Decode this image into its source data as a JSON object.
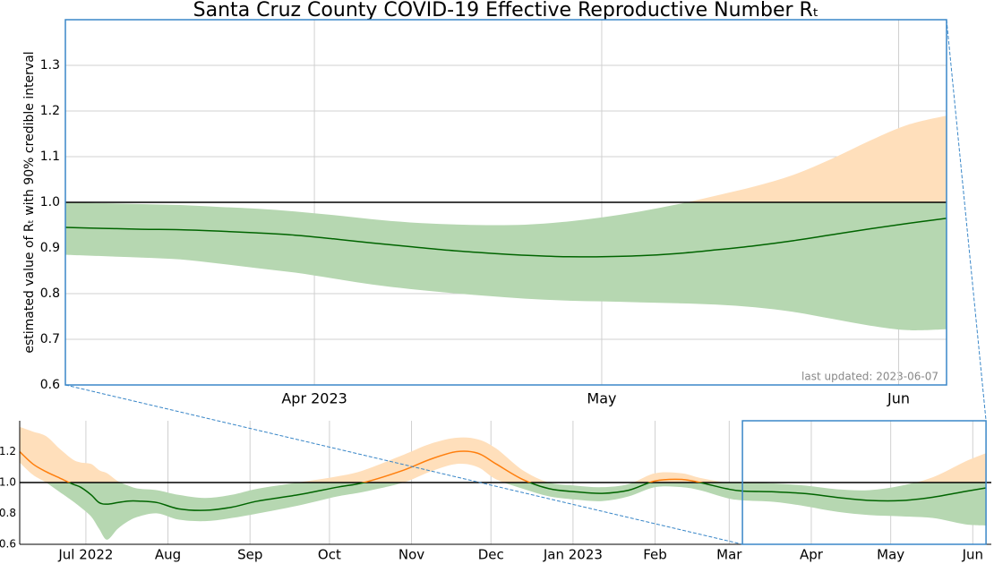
{
  "chart_data": [
    {
      "type": "line",
      "title": "Santa Cruz County COVID-19 Effective Reproductive Number Rₜ",
      "ylabel": "estimated value of Rₜ with 90% credible interval",
      "annotation": "last updated: 2023-06-07",
      "x": [
        278,
        282,
        286,
        290,
        294,
        298,
        302,
        306,
        310,
        314,
        318,
        322,
        326,
        330,
        334,
        338,
        342,
        346,
        350,
        354,
        358,
        362,
        366,
        370
      ],
      "values": [
        0.945,
        0.943,
        0.941,
        0.94,
        0.937,
        0.933,
        0.928,
        0.92,
        0.911,
        0.903,
        0.895,
        0.889,
        0.884,
        0.881,
        0.881,
        0.883,
        0.888,
        0.896,
        0.905,
        0.916,
        0.929,
        0.942,
        0.954,
        0.965
      ],
      "upper": [
        1.0,
        0.998,
        0.996,
        0.994,
        0.99,
        0.986,
        0.98,
        0.972,
        0.963,
        0.956,
        0.952,
        0.95,
        0.951,
        0.957,
        0.967,
        0.98,
        0.996,
        1.015,
        1.035,
        1.06,
        1.095,
        1.135,
        1.17,
        1.19
      ],
      "lower": [
        0.885,
        0.882,
        0.879,
        0.875,
        0.866,
        0.856,
        0.846,
        0.833,
        0.82,
        0.81,
        0.802,
        0.795,
        0.789,
        0.785,
        0.783,
        0.781,
        0.779,
        0.776,
        0.77,
        0.76,
        0.745,
        0.73,
        0.72,
        0.722
      ],
      "threshold": 1,
      "xlim": [
        278,
        370
      ],
      "ylim": [
        0.6,
        1.4
      ],
      "xticks": [
        {
          "value": 304,
          "label": "Apr 2023"
        },
        {
          "value": 334,
          "label": "May"
        },
        {
          "value": 365,
          "label": "Jun"
        }
      ],
      "yticks": [
        0.6,
        0.7,
        0.8,
        0.9,
        {
          "value": 1,
          "label": "1.0"
        },
        1.1,
        1.2,
        1.3
      ],
      "grid": {
        "x": true,
        "y": true
      },
      "colors": {
        "above_line": "#ff7f0e",
        "above_band": "#ffdfbb",
        "below_line": "#006400",
        "below_band": "#b6d7b1",
        "frame": "#3a87c8"
      }
    },
    {
      "type": "line",
      "x": [
        5,
        10,
        15,
        20,
        25,
        28,
        32,
        35,
        38,
        42,
        46,
        50,
        57,
        65,
        75,
        85,
        95,
        110,
        125,
        135,
        150,
        160,
        170,
        178,
        185,
        195,
        205,
        215,
        225,
        235,
        245,
        255,
        262,
        272,
        278,
        290,
        302,
        314,
        326,
        338,
        350,
        362,
        370
      ],
      "values": [
        1.2,
        1.12,
        1.07,
        1.03,
        0.99,
        0.97,
        0.92,
        0.87,
        0.86,
        0.87,
        0.88,
        0.88,
        0.87,
        0.83,
        0.82,
        0.84,
        0.88,
        0.92,
        0.97,
        1.0,
        1.08,
        1.15,
        1.2,
        1.19,
        1.12,
        1.02,
        0.96,
        0.94,
        0.93,
        0.95,
        1.01,
        1.02,
        1.0,
        0.96,
        0.945,
        0.94,
        0.928,
        0.903,
        0.884,
        0.883,
        0.905,
        0.942,
        0.965
      ],
      "upper": [
        1.36,
        1.33,
        1.3,
        1.22,
        1.15,
        1.13,
        1.12,
        1.08,
        1.06,
        1.01,
        0.98,
        0.96,
        0.95,
        0.92,
        0.9,
        0.92,
        0.96,
        1.0,
        1.04,
        1.08,
        1.18,
        1.25,
        1.29,
        1.28,
        1.22,
        1.08,
        1.0,
        0.98,
        0.97,
        0.99,
        1.06,
        1.06,
        1.03,
        1.0,
        1.0,
        0.994,
        0.98,
        0.956,
        0.951,
        0.98,
        1.035,
        1.135,
        1.19
      ],
      "lower": [
        1.13,
        1.05,
        1.0,
        0.94,
        0.88,
        0.84,
        0.78,
        0.7,
        0.63,
        0.7,
        0.75,
        0.78,
        0.8,
        0.76,
        0.75,
        0.77,
        0.8,
        0.85,
        0.91,
        0.94,
        1.0,
        1.07,
        1.12,
        1.1,
        1.02,
        0.96,
        0.91,
        0.89,
        0.88,
        0.91,
        0.97,
        0.97,
        0.95,
        0.9,
        0.885,
        0.875,
        0.846,
        0.81,
        0.789,
        0.781,
        0.77,
        0.73,
        0.722
      ],
      "threshold": 1,
      "xlim": [
        5,
        372
      ],
      "ylim": [
        0.6,
        1.4
      ],
      "xticks": [
        {
          "value": 30,
          "label": "Jul 2022"
        },
        {
          "value": 61,
          "label": "Aug"
        },
        {
          "value": 92,
          "label": "Sep"
        },
        {
          "value": 122,
          "label": "Oct"
        },
        {
          "value": 153,
          "label": "Nov"
        },
        {
          "value": 183,
          "label": "Dec"
        },
        {
          "value": 214,
          "label": "Jan 2023"
        },
        {
          "value": 245,
          "label": "Feb"
        },
        {
          "value": 273,
          "label": "Mar"
        },
        {
          "value": 304,
          "label": "Apr"
        },
        {
          "value": 334,
          "label": "May"
        },
        {
          "value": 365,
          "label": "Jun"
        }
      ],
      "yticks": [
        0.6,
        0.8,
        {
          "value": 1,
          "label": "1.0"
        },
        1.2
      ],
      "grid": {
        "x": true,
        "y": false
      },
      "colors": {
        "above_line": "#ff7f0e",
        "above_band": "#ffdfbb",
        "below_line": "#006400",
        "below_band": "#b6d7b1",
        "frame": "#3a87c8"
      }
    }
  ]
}
